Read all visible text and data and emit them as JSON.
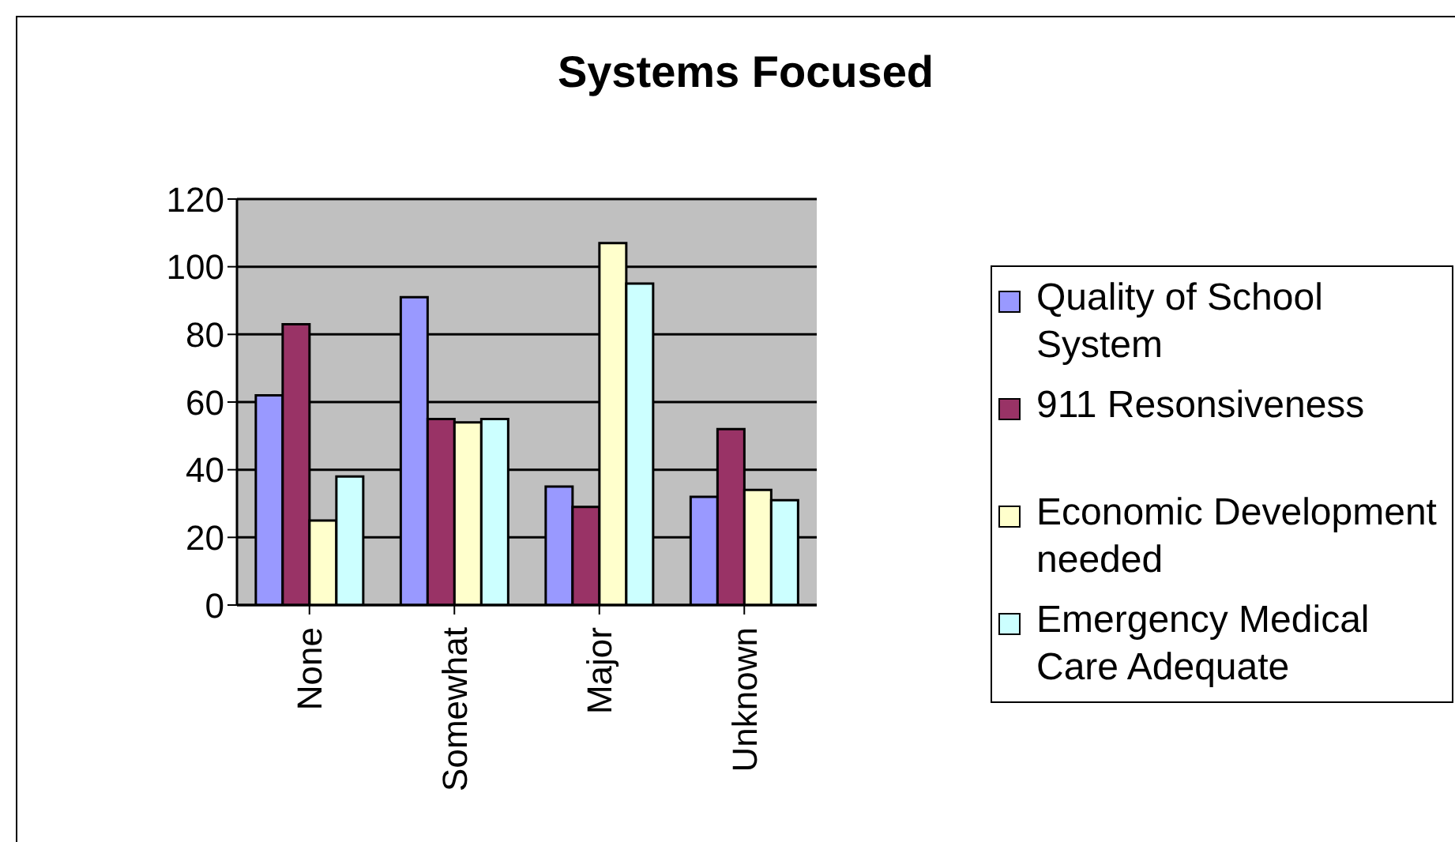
{
  "chart_data": {
    "type": "bar",
    "title": "Systems Focused",
    "categories": [
      "None",
      "Somewhat",
      "Major",
      "Unknown"
    ],
    "series": [
      {
        "name": "Quality of School System",
        "color": "#9999ff",
        "values": [
          62,
          91,
          35,
          32
        ]
      },
      {
        "name": "911 Resonsiveness",
        "color": "#993366",
        "values": [
          83,
          55,
          29,
          52
        ]
      },
      {
        "name": "Economic Development needed",
        "color": "#ffffcc",
        "values": [
          25,
          54,
          107,
          34
        ]
      },
      {
        "name": "Emergency Medical Care Adequate",
        "color": "#ccffff",
        "values": [
          38,
          55,
          95,
          31
        ]
      }
    ],
    "ylim": [
      0,
      120
    ],
    "yticks": [
      0,
      20,
      40,
      60,
      80,
      100,
      120
    ],
    "grid": "y",
    "legend": "right"
  }
}
